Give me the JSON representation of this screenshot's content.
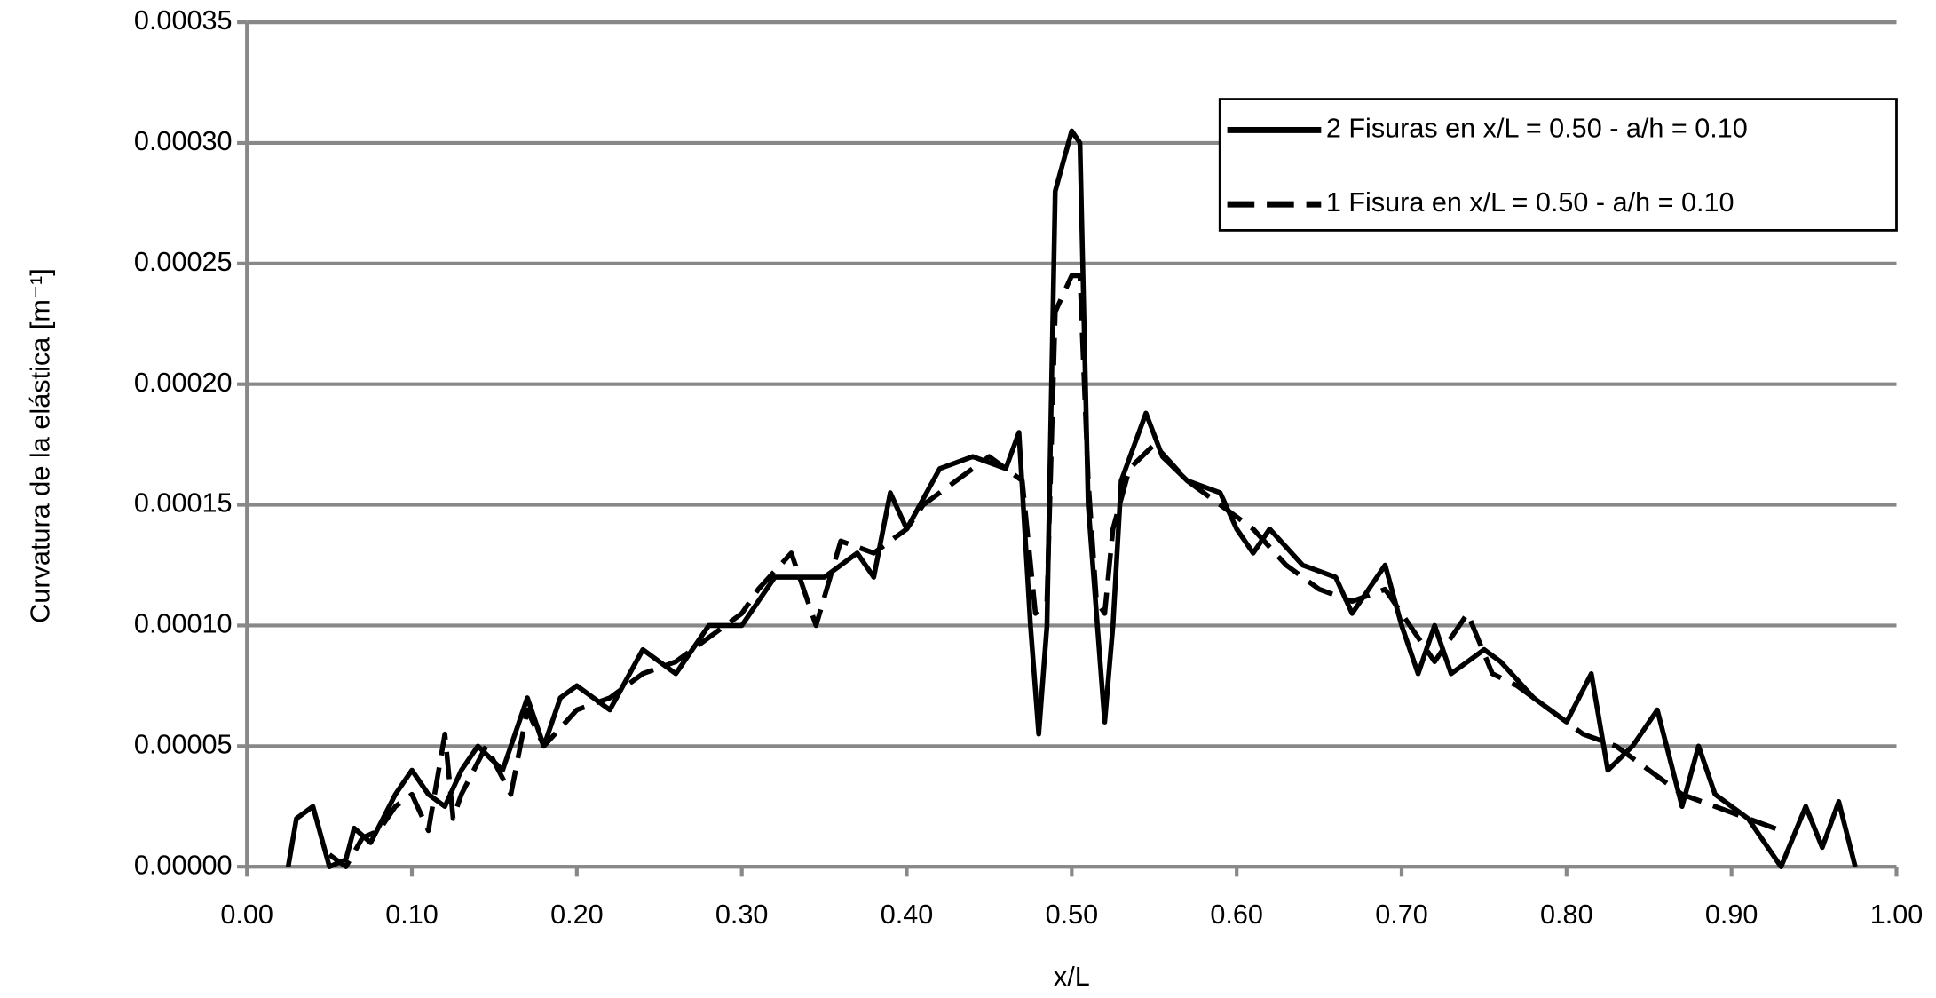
{
  "chart_data": {
    "type": "line",
    "x_label": "x/L",
    "y_label": "Curvatura de la elástica [m⁻¹]",
    "xlim": [
      0,
      1
    ],
    "ylim": [
      0,
      0.00035
    ],
    "xticks": [
      {
        "value": 0,
        "label": "0.00"
      },
      {
        "value": 0.1,
        "label": "0.10"
      },
      {
        "value": 0.2,
        "label": "0.20"
      },
      {
        "value": 0.3,
        "label": "0.30"
      },
      {
        "value": 0.4,
        "label": "0.40"
      },
      {
        "value": 0.5,
        "label": "0.50"
      },
      {
        "value": 0.6,
        "label": "0.60"
      },
      {
        "value": 0.7,
        "label": "0.70"
      },
      {
        "value": 0.8,
        "label": "0.80"
      },
      {
        "value": 0.9,
        "label": "0.90"
      },
      {
        "value": 1,
        "label": "1.00"
      }
    ],
    "yticks": [
      {
        "value": 0,
        "label": "0.00000"
      },
      {
        "value": 5e-05,
        "label": "0.00005"
      },
      {
        "value": 0.0001,
        "label": "0.00010"
      },
      {
        "value": 0.00015,
        "label": "0.00015"
      },
      {
        "value": 0.0002,
        "label": "0.00020"
      },
      {
        "value": 0.00025,
        "label": "0.00025"
      },
      {
        "value": 0.0003,
        "label": "0.00030"
      },
      {
        "value": 0.00035,
        "label": "0.00035"
      }
    ],
    "grid": true,
    "legend": "upper right",
    "series": [
      {
        "name": "2 Fisuras en x/L = 0.50 - a/h = 0.10",
        "color": "#000000",
        "style": "solid",
        "x": [
          0.025,
          0.03,
          0.04,
          0.05,
          0.06,
          0.065,
          0.075,
          0.09,
          0.1,
          0.11,
          0.12,
          0.13,
          0.14,
          0.155,
          0.17,
          0.18,
          0.19,
          0.2,
          0.22,
          0.24,
          0.26,
          0.28,
          0.3,
          0.32,
          0.35,
          0.37,
          0.38,
          0.39,
          0.4,
          0.42,
          0.44,
          0.46,
          0.468,
          0.475,
          0.48,
          0.485,
          0.49,
          0.5,
          0.505,
          0.51,
          0.52,
          0.525,
          0.53,
          0.545,
          0.555,
          0.57,
          0.59,
          0.6,
          0.61,
          0.62,
          0.64,
          0.66,
          0.67,
          0.69,
          0.7,
          0.71,
          0.72,
          0.73,
          0.75,
          0.76,
          0.78,
          0.8,
          0.815,
          0.825,
          0.84,
          0.855,
          0.87,
          0.88,
          0.89,
          0.91,
          0.93,
          0.945,
          0.955,
          0.965,
          0.975
        ],
        "values": [
          0,
          2e-05,
          2.5e-05,
          0,
          3e-06,
          1.6e-05,
          1e-05,
          3e-05,
          4e-05,
          3e-05,
          2.5e-05,
          4e-05,
          5e-05,
          4e-05,
          7e-05,
          5e-05,
          7e-05,
          7.5e-05,
          6.5e-05,
          9e-05,
          8e-05,
          0.0001,
          0.0001,
          0.00012,
          0.00012,
          0.00013,
          0.00012,
          0.000155,
          0.00014,
          0.000165,
          0.00017,
          0.000165,
          0.00018,
          0.0001,
          5.5e-05,
          0.0001,
          0.00028,
          0.000305,
          0.0003,
          0.00015,
          6e-05,
          0.0001,
          0.00016,
          0.000188,
          0.00017,
          0.00016,
          0.000155,
          0.00014,
          0.00013,
          0.00014,
          0.000125,
          0.00012,
          0.000105,
          0.000125,
          0.0001,
          8e-05,
          0.0001,
          8e-05,
          9e-05,
          8.5e-05,
          7e-05,
          6e-05,
          8e-05,
          4e-05,
          5e-05,
          6.5e-05,
          2.5e-05,
          5e-05,
          3e-05,
          2e-05,
          0,
          2.5e-05,
          8e-06,
          2.7e-05,
          0
        ]
      },
      {
        "name": "1 Fisura en x/L = 0.50 - a/h = 0.10",
        "color": "#000000",
        "style": "dashed",
        "x": [
          0.05,
          0.06,
          0.07,
          0.08,
          0.09,
          0.1,
          0.11,
          0.12,
          0.125,
          0.13,
          0.145,
          0.16,
          0.17,
          0.18,
          0.2,
          0.22,
          0.24,
          0.26,
          0.28,
          0.3,
          0.31,
          0.33,
          0.34,
          0.345,
          0.36,
          0.38,
          0.4,
          0.41,
          0.43,
          0.45,
          0.47,
          0.478,
          0.485,
          0.49,
          0.5,
          0.505,
          0.51,
          0.515,
          0.52,
          0.525,
          0.535,
          0.55,
          0.57,
          0.59,
          0.61,
          0.63,
          0.65,
          0.67,
          0.69,
          0.7,
          0.72,
          0.74,
          0.755,
          0.77,
          0.79,
          0.81,
          0.83,
          0.85,
          0.87,
          0.89,
          0.91,
          0.93
        ],
        "values": [
          5e-06,
          0,
          1.2e-05,
          1.5e-05,
          2.5e-05,
          3e-05,
          1.5e-05,
          5.5e-05,
          2e-05,
          3e-05,
          5e-05,
          3e-05,
          6.5e-05,
          5e-05,
          6.5e-05,
          7e-05,
          8e-05,
          8.5e-05,
          9.5e-05,
          0.000105,
          0.000115,
          0.00013,
          0.00011,
          0.0001,
          0.000135,
          0.00013,
          0.00014,
          0.00015,
          0.00016,
          0.00017,
          0.00016,
          0.000105,
          0.00011,
          0.00023,
          0.000245,
          0.000245,
          0.00016,
          0.00011,
          0.000105,
          0.00014,
          0.000165,
          0.000175,
          0.00016,
          0.00015,
          0.00014,
          0.000125,
          0.000115,
          0.00011,
          0.000115,
          0.000105,
          8.5e-05,
          0.000105,
          8e-05,
          7.5e-05,
          6.5e-05,
          5.5e-05,
          5e-05,
          4e-05,
          3e-05,
          2.5e-05,
          2e-05,
          1.5e-05
        ]
      }
    ]
  }
}
